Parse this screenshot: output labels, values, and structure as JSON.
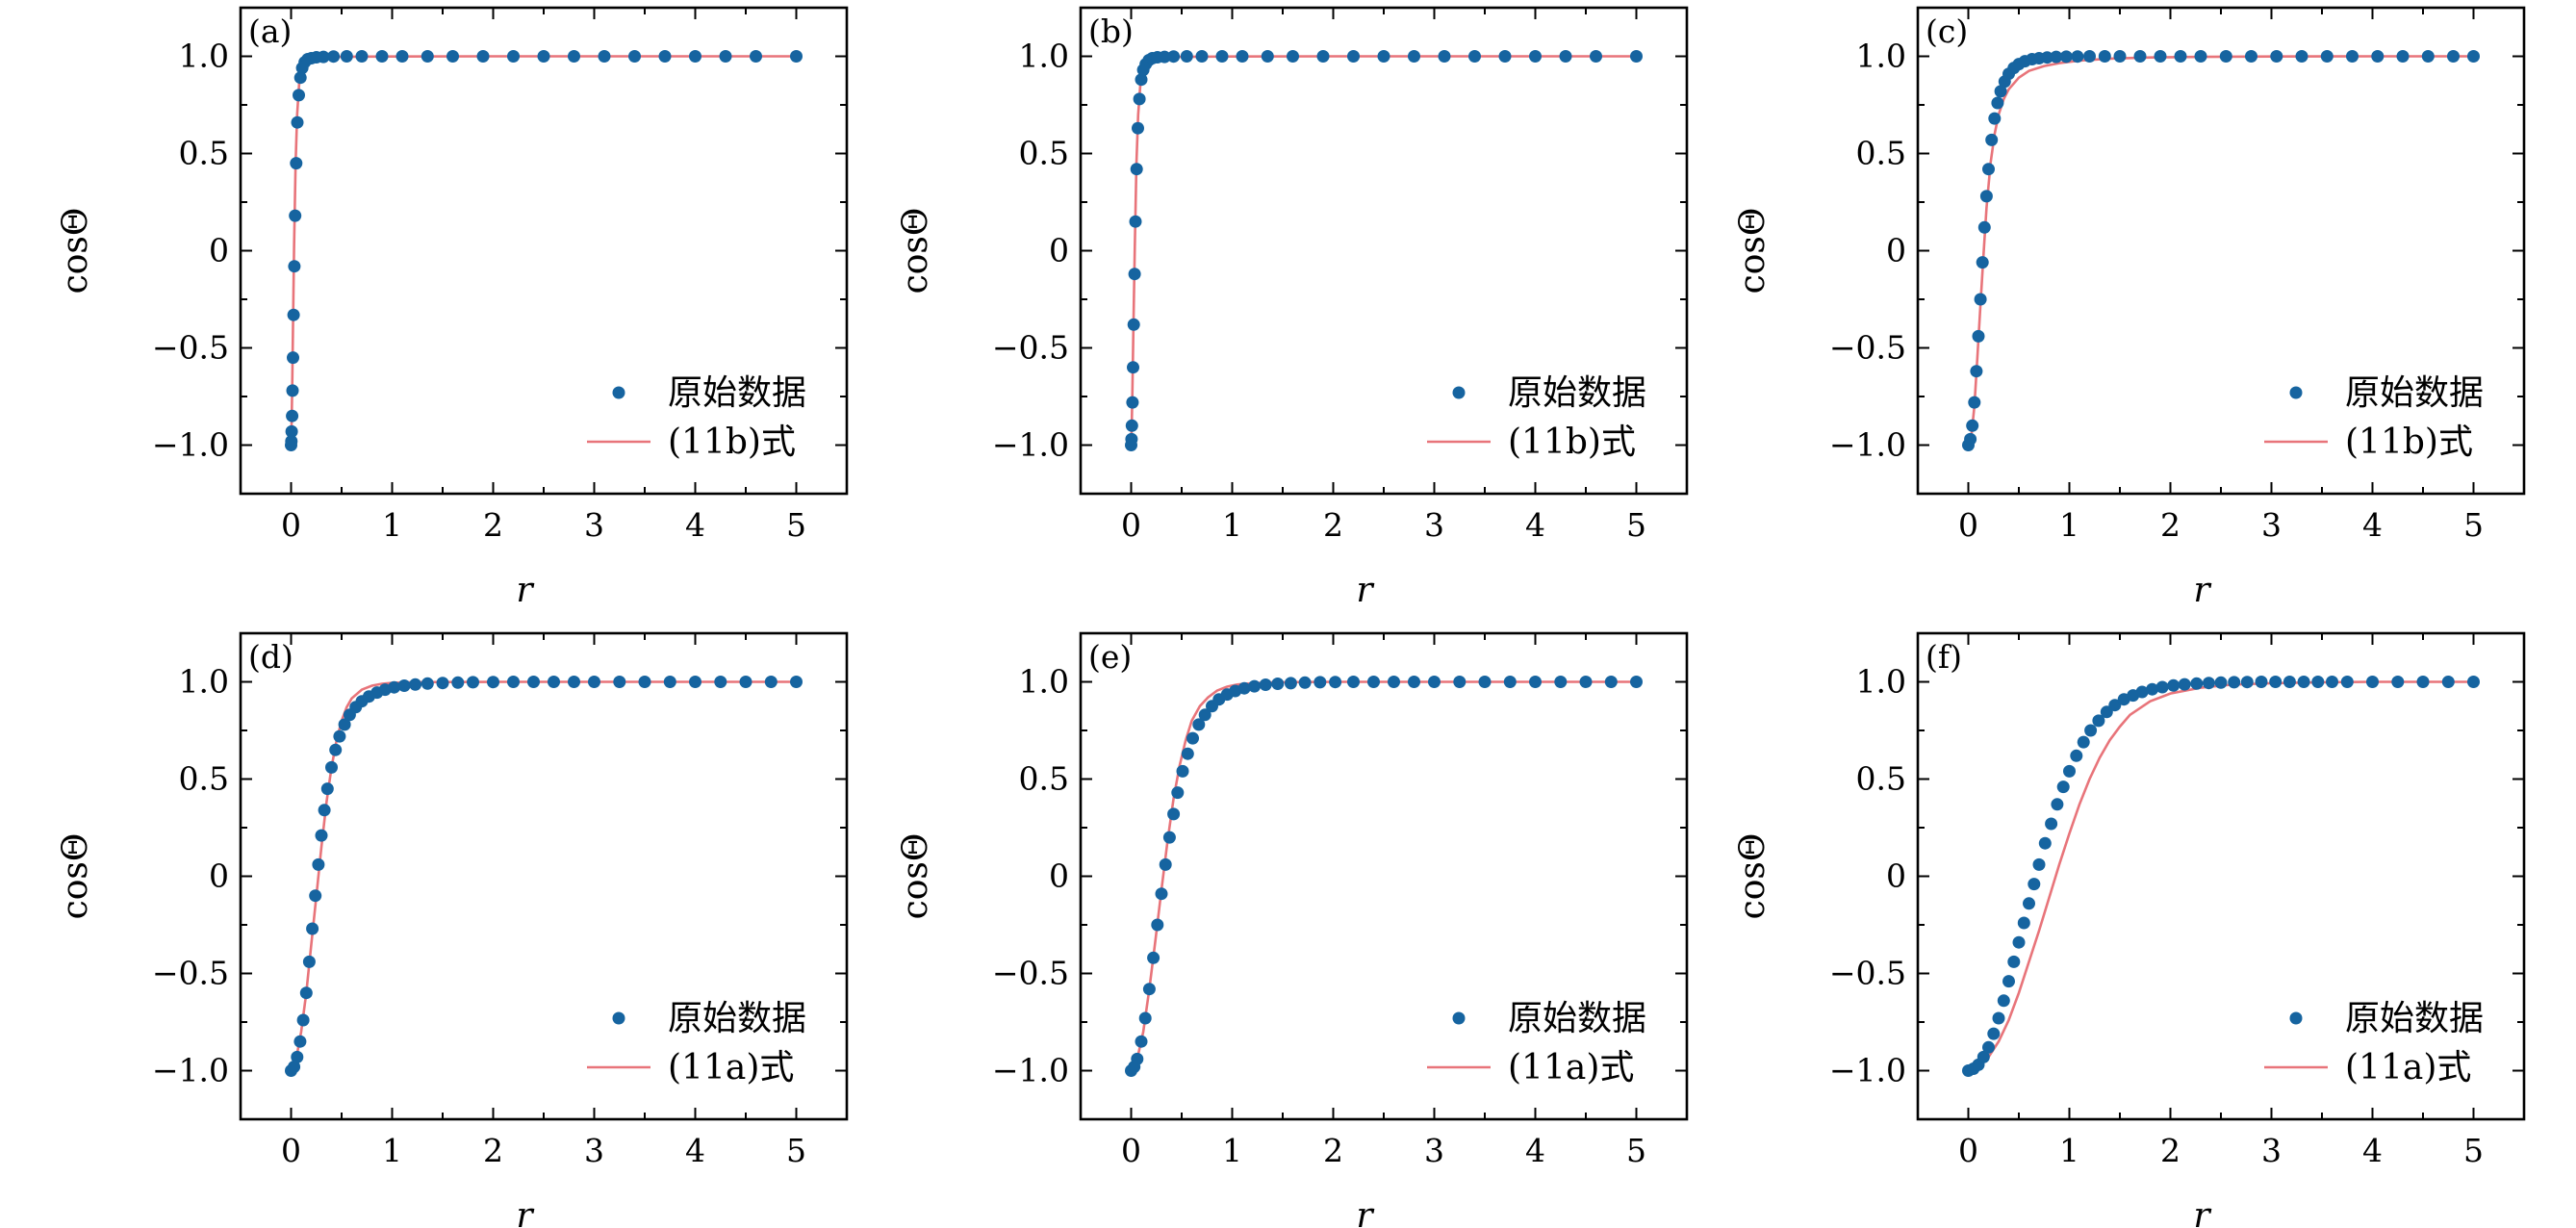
{
  "colors": {
    "data_points": "#1664a0",
    "fit_line": "#e8747a",
    "frame": "#000000"
  },
  "chart_data": [
    {
      "type": "scatter",
      "panel_label": "(a)",
      "xlabel": "r",
      "ylabel": "cosΘ",
      "xlim": [
        -0.5,
        5.5
      ],
      "ylim": [
        -1.25,
        1.25
      ],
      "xticks": [
        0,
        1,
        2,
        3,
        4,
        5
      ],
      "yticks": [
        -1.0,
        -0.5,
        0,
        0.5,
        1.0
      ],
      "ytick_labels": [
        "−1.0",
        "−0.5",
        "0",
        "0.5",
        "1.0"
      ],
      "legend_position": "lower-right",
      "series": [
        {
          "name": "原始数据",
          "style": "markers",
          "x": [
            0.0,
            0.003,
            0.006,
            0.01,
            0.014,
            0.019,
            0.025,
            0.032,
            0.04,
            0.05,
            0.062,
            0.076,
            0.092,
            0.11,
            0.135,
            0.165,
            0.2,
            0.25,
            0.32,
            0.42,
            0.55,
            0.7,
            0.9,
            1.1,
            1.35,
            1.6,
            1.9,
            2.2,
            2.5,
            2.8,
            3.1,
            3.4,
            3.7,
            4.0,
            4.3,
            4.6,
            5.0
          ],
          "y": [
            -1.0,
            -0.98,
            -0.93,
            -0.85,
            -0.72,
            -0.55,
            -0.33,
            -0.08,
            0.18,
            0.45,
            0.66,
            0.8,
            0.89,
            0.94,
            0.97,
            0.985,
            0.99,
            0.995,
            0.997,
            0.999,
            1.0,
            1.0,
            1.0,
            1.0,
            1.0,
            1.0,
            1.0,
            1.0,
            1.0,
            1.0,
            1.0,
            1.0,
            1.0,
            1.0,
            1.0,
            1.0,
            1.0
          ]
        },
        {
          "name": "(11b)式",
          "style": "line",
          "x": [
            0.0,
            0.005,
            0.01,
            0.02,
            0.03,
            0.045,
            0.06,
            0.08,
            0.1,
            0.13,
            0.17,
            0.22,
            0.3,
            0.4,
            0.6,
            1.0,
            2.0,
            3.0,
            4.0,
            5.0
          ],
          "y": [
            -1.0,
            -0.9,
            -0.72,
            -0.35,
            0.02,
            0.45,
            0.7,
            0.86,
            0.93,
            0.97,
            0.985,
            0.99,
            0.995,
            0.997,
            0.998,
            0.999,
            1.0,
            1.0,
            1.0,
            1.0
          ]
        }
      ]
    },
    {
      "type": "scatter",
      "panel_label": "(b)",
      "xlabel": "r",
      "ylabel": "cosΘ",
      "xlim": [
        -0.5,
        5.5
      ],
      "ylim": [
        -1.25,
        1.25
      ],
      "xticks": [
        0,
        1,
        2,
        3,
        4,
        5
      ],
      "yticks": [
        -1.0,
        -0.5,
        0,
        0.5,
        1.0
      ],
      "ytick_labels": [
        "−1.0",
        "−0.5",
        "0",
        "0.5",
        "1.0"
      ],
      "legend_position": "lower-right",
      "series": [
        {
          "name": "原始数据",
          "style": "markers",
          "x": [
            0.0,
            0.004,
            0.008,
            0.013,
            0.019,
            0.026,
            0.034,
            0.043,
            0.054,
            0.067,
            0.082,
            0.1,
            0.12,
            0.145,
            0.175,
            0.21,
            0.26,
            0.33,
            0.42,
            0.55,
            0.7,
            0.9,
            1.1,
            1.35,
            1.6,
            1.9,
            2.2,
            2.5,
            2.8,
            3.1,
            3.4,
            3.7,
            4.0,
            4.3,
            4.6,
            5.0
          ],
          "y": [
            -1.0,
            -0.97,
            -0.9,
            -0.78,
            -0.6,
            -0.38,
            -0.12,
            0.15,
            0.42,
            0.63,
            0.78,
            0.88,
            0.93,
            0.96,
            0.98,
            0.99,
            0.995,
            0.997,
            0.999,
            1.0,
            1.0,
            1.0,
            1.0,
            1.0,
            1.0,
            1.0,
            1.0,
            1.0,
            1.0,
            1.0,
            1.0,
            1.0,
            1.0,
            1.0,
            1.0,
            1.0
          ]
        },
        {
          "name": "(11b)式",
          "style": "line",
          "x": [
            0.0,
            0.006,
            0.012,
            0.024,
            0.036,
            0.052,
            0.07,
            0.09,
            0.115,
            0.145,
            0.19,
            0.25,
            0.33,
            0.45,
            0.65,
            1.0,
            2.0,
            3.0,
            4.0,
            5.0
          ],
          "y": [
            -1.0,
            -0.9,
            -0.72,
            -0.35,
            0.02,
            0.45,
            0.7,
            0.85,
            0.93,
            0.965,
            0.982,
            0.99,
            0.995,
            0.997,
            0.998,
            0.999,
            1.0,
            1.0,
            1.0,
            1.0
          ]
        }
      ]
    },
    {
      "type": "scatter",
      "panel_label": "(c)",
      "xlabel": "r",
      "ylabel": "cosΘ",
      "xlim": [
        -0.5,
        5.5
      ],
      "ylim": [
        -1.25,
        1.25
      ],
      "xticks": [
        0,
        1,
        2,
        3,
        4,
        5
      ],
      "yticks": [
        -1.0,
        -0.5,
        0,
        0.5,
        1.0
      ],
      "ytick_labels": [
        "−1.0",
        "−0.5",
        "0",
        "0.5",
        "1.0"
      ],
      "legend_position": "lower-right",
      "series": [
        {
          "name": "原始数据",
          "style": "markers",
          "x": [
            0.0,
            0.02,
            0.04,
            0.06,
            0.08,
            0.1,
            0.12,
            0.14,
            0.16,
            0.18,
            0.2,
            0.23,
            0.26,
            0.29,
            0.32,
            0.36,
            0.4,
            0.45,
            0.5,
            0.56,
            0.63,
            0.7,
            0.78,
            0.87,
            0.97,
            1.08,
            1.2,
            1.35,
            1.5,
            1.7,
            1.9,
            2.1,
            2.3,
            2.55,
            2.8,
            3.05,
            3.3,
            3.55,
            3.8,
            4.05,
            4.3,
            4.55,
            4.8,
            5.0
          ],
          "y": [
            -1.0,
            -0.97,
            -0.9,
            -0.78,
            -0.62,
            -0.44,
            -0.25,
            -0.06,
            0.12,
            0.28,
            0.42,
            0.57,
            0.68,
            0.76,
            0.82,
            0.87,
            0.91,
            0.94,
            0.96,
            0.975,
            0.985,
            0.99,
            0.994,
            0.997,
            0.998,
            0.999,
            1.0,
            1.0,
            1.0,
            1.0,
            1.0,
            1.0,
            1.0,
            1.0,
            1.0,
            1.0,
            1.0,
            1.0,
            1.0,
            1.0,
            1.0,
            1.0,
            1.0,
            1.0
          ]
        },
        {
          "name": "(11b)式",
          "style": "line",
          "x": [
            0.0,
            0.03,
            0.06,
            0.09,
            0.12,
            0.15,
            0.18,
            0.22,
            0.26,
            0.3,
            0.35,
            0.4,
            0.5,
            0.6,
            0.75,
            0.9,
            1.1,
            1.4,
            1.8,
            2.3,
            3.0,
            4.0,
            5.0
          ],
          "y": [
            -1.0,
            -0.95,
            -0.8,
            -0.55,
            -0.28,
            -0.02,
            0.22,
            0.45,
            0.6,
            0.7,
            0.78,
            0.83,
            0.89,
            0.925,
            0.95,
            0.965,
            0.978,
            0.988,
            0.994,
            0.997,
            0.999,
            1.0,
            1.0
          ]
        }
      ]
    },
    {
      "type": "scatter",
      "panel_label": "(d)",
      "xlabel": "r",
      "ylabel": "cosΘ",
      "xlim": [
        -0.5,
        5.5
      ],
      "ylim": [
        -1.25,
        1.25
      ],
      "xticks": [
        0,
        1,
        2,
        3,
        4,
        5
      ],
      "yticks": [
        -1.0,
        -0.5,
        0,
        0.5,
        1.0
      ],
      "ytick_labels": [
        "−1.0",
        "−0.5",
        "0",
        "0.5",
        "1.0"
      ],
      "legend_position": "lower-right",
      "series": [
        {
          "name": "原始数据",
          "style": "markers",
          "x": [
            0.0,
            0.03,
            0.06,
            0.09,
            0.12,
            0.15,
            0.18,
            0.21,
            0.24,
            0.27,
            0.3,
            0.33,
            0.36,
            0.4,
            0.44,
            0.48,
            0.53,
            0.58,
            0.64,
            0.7,
            0.77,
            0.85,
            0.93,
            1.02,
            1.12,
            1.23,
            1.35,
            1.5,
            1.65,
            1.8,
            2.0,
            2.2,
            2.4,
            2.6,
            2.8,
            3.0,
            3.25,
            3.5,
            3.75,
            4.0,
            4.25,
            4.5,
            4.75,
            5.0
          ],
          "y": [
            -1.0,
            -0.98,
            -0.93,
            -0.85,
            -0.74,
            -0.6,
            -0.44,
            -0.27,
            -0.1,
            0.06,
            0.21,
            0.34,
            0.45,
            0.56,
            0.65,
            0.72,
            0.78,
            0.83,
            0.87,
            0.9,
            0.925,
            0.945,
            0.96,
            0.972,
            0.98,
            0.986,
            0.991,
            0.994,
            0.996,
            0.998,
            0.999,
            1.0,
            1.0,
            1.0,
            1.0,
            1.0,
            1.0,
            1.0,
            1.0,
            1.0,
            1.0,
            1.0,
            1.0,
            1.0
          ]
        },
        {
          "name": "(11a)式",
          "style": "line",
          "x": [
            0.0,
            0.05,
            0.1,
            0.15,
            0.2,
            0.25,
            0.3,
            0.35,
            0.4,
            0.45,
            0.5,
            0.55,
            0.6,
            0.7,
            0.8,
            0.9,
            1.0,
            1.2,
            1.5,
            2.0,
            3.0,
            4.0,
            5.0
          ],
          "y": [
            -1.0,
            -0.94,
            -0.8,
            -0.6,
            -0.35,
            -0.1,
            0.15,
            0.38,
            0.56,
            0.7,
            0.8,
            0.87,
            0.915,
            0.96,
            0.98,
            0.99,
            0.995,
            0.998,
            0.999,
            1.0,
            1.0,
            1.0,
            1.0
          ]
        }
      ]
    },
    {
      "type": "scatter",
      "panel_label": "(e)",
      "xlabel": "r",
      "ylabel": "cosΘ",
      "xlim": [
        -0.5,
        5.5
      ],
      "ylim": [
        -1.25,
        1.25
      ],
      "xticks": [
        0,
        1,
        2,
        3,
        4,
        5
      ],
      "yticks": [
        -1.0,
        -0.5,
        0,
        0.5,
        1.0
      ],
      "ytick_labels": [
        "−1.0",
        "−0.5",
        "0",
        "0.5",
        "1.0"
      ],
      "legend_position": "lower-right",
      "series": [
        {
          "name": "原始数据",
          "style": "markers",
          "x": [
            0.0,
            0.03,
            0.06,
            0.1,
            0.14,
            0.18,
            0.22,
            0.26,
            0.3,
            0.34,
            0.38,
            0.42,
            0.46,
            0.51,
            0.56,
            0.61,
            0.67,
            0.73,
            0.8,
            0.87,
            0.95,
            1.03,
            1.12,
            1.22,
            1.33,
            1.45,
            1.58,
            1.72,
            1.87,
            2.02,
            2.2,
            2.4,
            2.6,
            2.8,
            3.0,
            3.25,
            3.5,
            3.75,
            4.0,
            4.25,
            4.5,
            4.75,
            5.0
          ],
          "y": [
            -1.0,
            -0.98,
            -0.94,
            -0.85,
            -0.73,
            -0.58,
            -0.42,
            -0.25,
            -0.09,
            0.06,
            0.2,
            0.32,
            0.43,
            0.54,
            0.63,
            0.71,
            0.78,
            0.83,
            0.875,
            0.91,
            0.935,
            0.953,
            0.967,
            0.977,
            0.985,
            0.99,
            0.993,
            0.996,
            0.998,
            0.999,
            1.0,
            1.0,
            1.0,
            1.0,
            1.0,
            1.0,
            1.0,
            1.0,
            1.0,
            1.0,
            1.0,
            1.0,
            1.0
          ]
        },
        {
          "name": "(11a)式",
          "style": "line",
          "x": [
            0.0,
            0.06,
            0.12,
            0.18,
            0.24,
            0.3,
            0.36,
            0.42,
            0.48,
            0.54,
            0.6,
            0.68,
            0.76,
            0.85,
            0.95,
            1.05,
            1.2,
            1.4,
            1.7,
            2.1,
            3.0,
            4.0,
            5.0
          ],
          "y": [
            -1.0,
            -0.94,
            -0.8,
            -0.58,
            -0.33,
            -0.07,
            0.18,
            0.4,
            0.57,
            0.7,
            0.8,
            0.875,
            0.92,
            0.955,
            0.975,
            0.986,
            0.993,
            0.997,
            0.999,
            1.0,
            1.0,
            1.0,
            1.0
          ]
        }
      ]
    },
    {
      "type": "scatter",
      "panel_label": "(f)",
      "xlabel": "r",
      "ylabel": "cosΘ",
      "xlim": [
        -0.5,
        5.5
      ],
      "ylim": [
        -1.25,
        1.25
      ],
      "xticks": [
        0,
        1,
        2,
        3,
        4,
        5
      ],
      "yticks": [
        -1.0,
        -0.5,
        0,
        0.5,
        1.0
      ],
      "ytick_labels": [
        "−1.0",
        "−0.5",
        "0",
        "0.5",
        "1.0"
      ],
      "legend_position": "lower-right",
      "series": [
        {
          "name": "原始数据",
          "style": "markers",
          "x": [
            0.0,
            0.05,
            0.1,
            0.15,
            0.2,
            0.25,
            0.3,
            0.35,
            0.4,
            0.45,
            0.5,
            0.55,
            0.6,
            0.65,
            0.7,
            0.76,
            0.82,
            0.88,
            0.94,
            1.0,
            1.07,
            1.14,
            1.21,
            1.29,
            1.37,
            1.45,
            1.54,
            1.63,
            1.72,
            1.82,
            1.92,
            2.03,
            2.14,
            2.26,
            2.38,
            2.5,
            2.63,
            2.76,
            2.9,
            3.04,
            3.18,
            3.32,
            3.46,
            3.6,
            3.75,
            4.0,
            4.25,
            4.5,
            4.75,
            5.0
          ],
          "y": [
            -1.0,
            -0.99,
            -0.97,
            -0.93,
            -0.88,
            -0.81,
            -0.73,
            -0.64,
            -0.54,
            -0.44,
            -0.34,
            -0.24,
            -0.14,
            -0.04,
            0.06,
            0.17,
            0.27,
            0.37,
            0.46,
            0.54,
            0.62,
            0.69,
            0.75,
            0.8,
            0.845,
            0.88,
            0.91,
            0.93,
            0.948,
            0.962,
            0.973,
            0.981,
            0.987,
            0.991,
            0.994,
            0.996,
            0.998,
            0.999,
            1.0,
            1.0,
            1.0,
            1.0,
            1.0,
            1.0,
            1.0,
            1.0,
            1.0,
            1.0,
            1.0,
            1.0
          ]
        },
        {
          "name": "(11a)式",
          "style": "line",
          "x": [
            0.0,
            0.1,
            0.2,
            0.3,
            0.4,
            0.5,
            0.6,
            0.7,
            0.8,
            0.9,
            1.0,
            1.1,
            1.2,
            1.3,
            1.4,
            1.5,
            1.6,
            1.8,
            2.0,
            2.3,
            2.6,
            3.0,
            3.5,
            4.0,
            5.0
          ],
          "y": [
            -1.0,
            -0.98,
            -0.93,
            -0.85,
            -0.74,
            -0.6,
            -0.44,
            -0.28,
            -0.11,
            0.06,
            0.22,
            0.37,
            0.5,
            0.61,
            0.7,
            0.77,
            0.83,
            0.9,
            0.94,
            0.97,
            0.985,
            0.993,
            0.998,
            1.0,
            1.0
          ]
        }
      ]
    }
  ]
}
